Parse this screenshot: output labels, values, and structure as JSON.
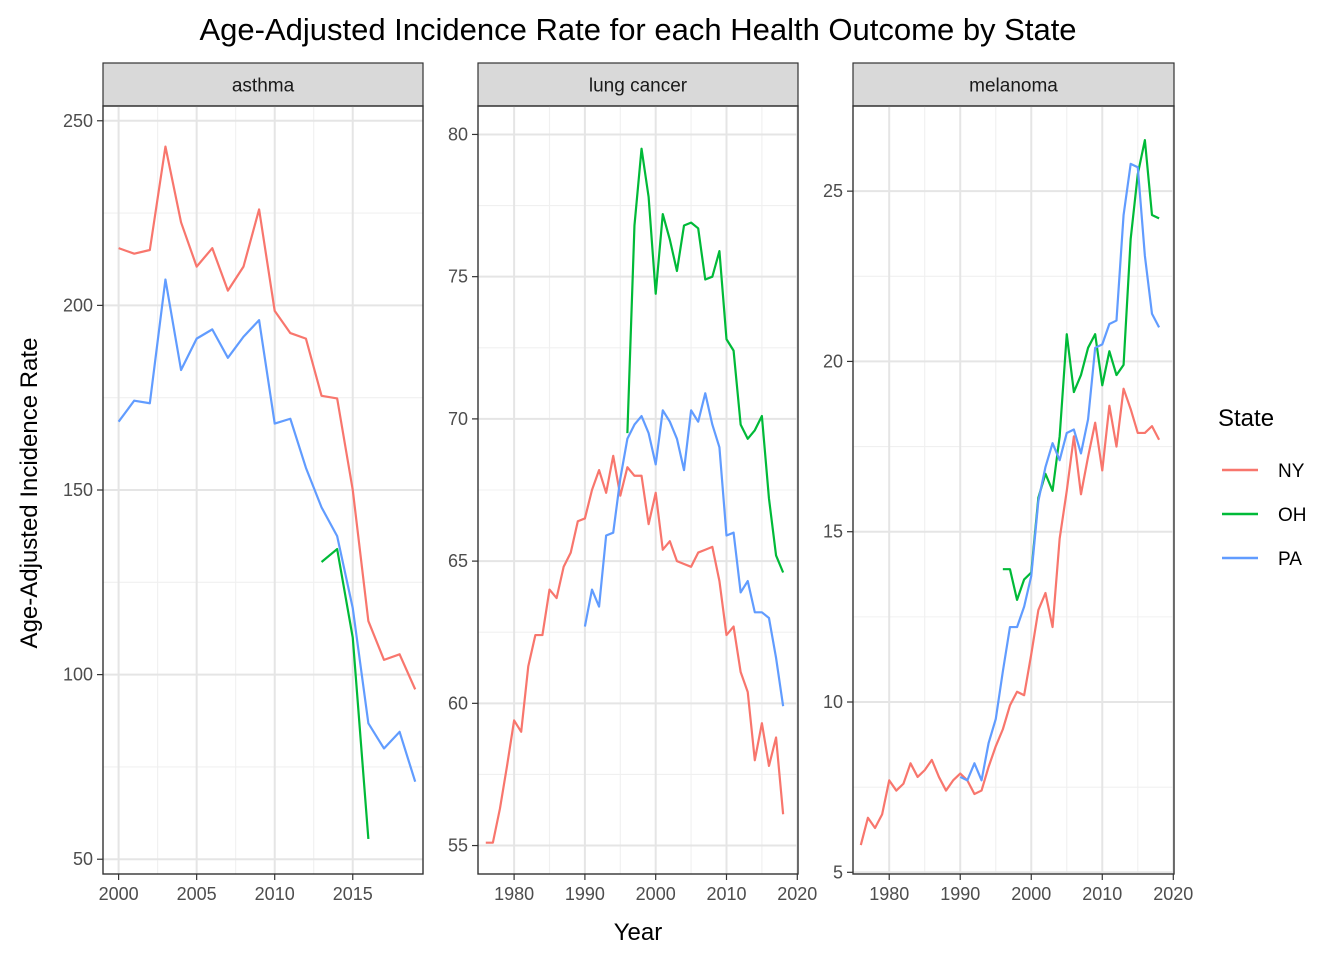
{
  "title": "Age-Adjusted Incidence Rate for each Health Outcome by State",
  "xlabel": "Year",
  "ylabel": "Age-Adjusted Incidence Rate",
  "legend": {
    "title": "State",
    "entries": [
      {
        "label": "NY",
        "color": "#F8766D"
      },
      {
        "label": "OH",
        "color": "#00BA38"
      },
      {
        "label": "PA",
        "color": "#619CFF"
      }
    ],
    "position": "right"
  },
  "chart_data": [
    {
      "type": "line",
      "facet": "asthma",
      "xlim": [
        1999.0,
        2019.5
      ],
      "ylim": [
        46,
        254
      ],
      "xticks": [
        2000,
        2005,
        2010,
        2015
      ],
      "xtick_labels": [
        "2000",
        "2005",
        "2010",
        "2015"
      ],
      "yticks": [
        50,
        100,
        150,
        200,
        250
      ],
      "ytick_labels": [
        "50",
        "100",
        "150",
        "200",
        "250"
      ],
      "grid": true,
      "series": [
        {
          "name": "NY",
          "x": [
            2000,
            2001,
            2002,
            2003,
            2004,
            2005,
            2006,
            2007,
            2008,
            2009,
            2010,
            2011,
            2012,
            2013,
            2014,
            2015,
            2016,
            2017,
            2018,
            2019
          ],
          "y": [
            215.5,
            214,
            215,
            243,
            222.5,
            210.5,
            215.5,
            204,
            210.5,
            226,
            198.5,
            192.5,
            191,
            175.5,
            174.8,
            150,
            114.5,
            104,
            105.5,
            96
          ]
        },
        {
          "name": "OH",
          "x": [
            2013,
            2014,
            2015,
            2016
          ],
          "y": [
            130.5,
            134,
            110,
            55.5
          ]
        },
        {
          "name": "PA",
          "x": [
            2000,
            2001,
            2002,
            2003,
            2004,
            2005,
            2006,
            2007,
            2008,
            2009,
            2010,
            2011,
            2012,
            2013,
            2014,
            2015,
            2016,
            2017,
            2018,
            2019
          ],
          "y": [
            168.5,
            174.2,
            173.5,
            207,
            182.5,
            191,
            193.5,
            185.8,
            191.5,
            196,
            168,
            169.3,
            156,
            145.3,
            137.5,
            118,
            86.8,
            80,
            84.5,
            71
          ]
        }
      ]
    },
    {
      "type": "line",
      "facet": "lung cancer",
      "xlim": [
        1974.9,
        2020.1
      ],
      "ylim": [
        54,
        81
      ],
      "xticks": [
        1980,
        1990,
        2000,
        2010,
        2020
      ],
      "xtick_labels": [
        "1980",
        "1990",
        "2000",
        "2010",
        "2020"
      ],
      "yticks": [
        55,
        60,
        65,
        70,
        75,
        80
      ],
      "ytick_labels": [
        "55",
        "60",
        "65",
        "70",
        "75",
        "80"
      ],
      "grid": true,
      "series": [
        {
          "name": "NY",
          "x": [
            1976,
            1977,
            1978,
            1979,
            1980,
            1981,
            1982,
            1983,
            1984,
            1985,
            1986,
            1987,
            1988,
            1989,
            1990,
            1991,
            1992,
            1993,
            1994,
            1995,
            1996,
            1997,
            1998,
            1999,
            2000,
            2001,
            2002,
            2003,
            2004,
            2005,
            2006,
            2007,
            2008,
            2009,
            2010,
            2011,
            2012,
            2013,
            2014,
            2015,
            2016,
            2017,
            2018
          ],
          "y": [
            55.1,
            55.1,
            56.3,
            57.8,
            59.4,
            59,
            61.3,
            62.4,
            62.4,
            64,
            63.7,
            64.8,
            65.3,
            66.4,
            66.5,
            67.5,
            68.2,
            67.4,
            68.7,
            67.3,
            68.3,
            68,
            68,
            66.3,
            67.4,
            65.4,
            65.7,
            65,
            64.9,
            64.8,
            65.3,
            65.4,
            65.5,
            64.3,
            62.4,
            62.7,
            61.1,
            60.4,
            58,
            59.3,
            57.8,
            58.8,
            56.1
          ]
        },
        {
          "name": "OH",
          "x": [
            1996,
            1997,
            1998,
            1999,
            2000,
            2001,
            2002,
            2003,
            2004,
            2005,
            2006,
            2007,
            2008,
            2009,
            2010,
            2011,
            2012,
            2013,
            2014,
            2015,
            2016,
            2017,
            2018
          ],
          "y": [
            69.5,
            76.8,
            79.5,
            77.8,
            74.4,
            77.2,
            76.3,
            75.2,
            76.8,
            76.9,
            76.7,
            74.9,
            75,
            75.9,
            72.8,
            72.4,
            69.8,
            69.3,
            69.6,
            70.1,
            67.2,
            65.2,
            64.6
          ]
        },
        {
          "name": "PA",
          "x": [
            1990,
            1991,
            1992,
            1993,
            1994,
            1995,
            1996,
            1997,
            1998,
            1999,
            2000,
            2001,
            2002,
            2003,
            2004,
            2005,
            2006,
            2007,
            2008,
            2009,
            2010,
            2011,
            2012,
            2013,
            2014,
            2015,
            2016,
            2017,
            2018
          ],
          "y": [
            62.7,
            64,
            63.4,
            65.9,
            66,
            67.9,
            69.3,
            69.8,
            70.1,
            69.5,
            68.4,
            70.3,
            69.9,
            69.3,
            68.2,
            70.3,
            69.9,
            70.9,
            69.8,
            69,
            65.9,
            66,
            63.9,
            64.3,
            63.2,
            63.2,
            63,
            61.6,
            59.9
          ]
        }
      ]
    },
    {
      "type": "line",
      "facet": "melanoma",
      "xlim": [
        1974.9,
        2020.1
      ],
      "ylim": [
        4.95,
        27.5
      ],
      "xticks": [
        1980,
        1990,
        2000,
        2010,
        2020
      ],
      "xtick_labels": [
        "1980",
        "1990",
        "2000",
        "2010",
        "2020"
      ],
      "yticks": [
        5,
        10,
        15,
        20,
        25
      ],
      "ytick_labels": [
        "5",
        "10",
        "15",
        "20",
        "25"
      ],
      "grid": true,
      "series": [
        {
          "name": "NY",
          "x": [
            1976,
            1977,
            1978,
            1979,
            1980,
            1981,
            1982,
            1983,
            1984,
            1985,
            1986,
            1987,
            1988,
            1989,
            1990,
            1991,
            1992,
            1993,
            1994,
            1995,
            1996,
            1997,
            1998,
            1999,
            2000,
            2001,
            2002,
            2003,
            2004,
            2005,
            2006,
            2007,
            2008,
            2009,
            2010,
            2011,
            2012,
            2013,
            2014,
            2015,
            2016,
            2017,
            2018
          ],
          "y": [
            5.8,
            6.6,
            6.3,
            6.7,
            7.7,
            7.4,
            7.6,
            8.2,
            7.8,
            8,
            8.3,
            7.8,
            7.4,
            7.7,
            7.9,
            7.7,
            7.3,
            7.4,
            8.1,
            8.7,
            9.2,
            9.9,
            10.3,
            10.2,
            11.4,
            12.7,
            13.2,
            12.2,
            14.8,
            16.2,
            17.8,
            16.1,
            17.2,
            18.2,
            16.8,
            18.7,
            17.5,
            19.2,
            18.6,
            17.9,
            17.9,
            18.1,
            17.7
          ]
        },
        {
          "name": "OH",
          "x": [
            1996,
            1997,
            1998,
            1999,
            2000,
            2001,
            2002,
            2003,
            2004,
            2005,
            2006,
            2007,
            2008,
            2009,
            2010,
            2011,
            2012,
            2013,
            2014,
            2015,
            2016,
            2017,
            2018
          ],
          "y": [
            13.9,
            13.9,
            13,
            13.6,
            13.8,
            16,
            16.7,
            16.2,
            17.8,
            20.8,
            19.1,
            19.6,
            20.4,
            20.8,
            19.3,
            20.3,
            19.6,
            19.9,
            23.6,
            25.5,
            26.5,
            24.3,
            24.2
          ]
        },
        {
          "name": "PA",
          "x": [
            1990,
            1991,
            1992,
            1993,
            1994,
            1995,
            1996,
            1997,
            1998,
            1999,
            2000,
            2001,
            2002,
            2003,
            2004,
            2005,
            2006,
            2007,
            2008,
            2009,
            2010,
            2011,
            2012,
            2013,
            2014,
            2015,
            2016,
            2017,
            2018
          ],
          "y": [
            7.8,
            7.7,
            8.2,
            7.7,
            8.8,
            9.5,
            10.9,
            12.2,
            12.2,
            12.8,
            13.7,
            15.9,
            16.9,
            17.6,
            17.1,
            17.9,
            18,
            17.3,
            18.3,
            20.4,
            20.5,
            21.1,
            21.2,
            24.3,
            25.8,
            25.7,
            23.1,
            21.4,
            21
          ]
        }
      ]
    }
  ]
}
